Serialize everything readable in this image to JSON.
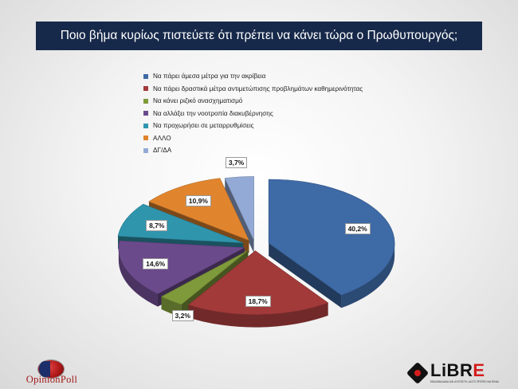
{
  "title": "Ποιο βήμα κυρίως πιστεύετε ότι πρέπει να κάνει τώρα ο Πρωθυπουργός;",
  "chart_data": {
    "type": "pie",
    "title": "Ποιο βήμα κυρίως πιστεύετε ότι πρέπει να κάνει τώρα ο Πρωθυπουργός;",
    "variant": "3d-exploded",
    "legend_position": "top",
    "labels": [
      "Να πάρει άμεσα μέτρα για την ακρίβεια",
      "Να πάρει δραστικά μέτρα αντιμετώπισης προβλημάτων καθημερινότητας",
      "Να κάνει ριζικό ανασχηματισμό",
      "Να αλλάξει την νοοτροπία διακυβέρνησης",
      "Να προχωρήσει σε μεταρρυθμίσεις",
      "ΑΛΛΟ",
      "ΔΓ/ΔΑ"
    ],
    "values": [
      40.2,
      18.7,
      3.2,
      14.6,
      8.7,
      10.9,
      3.7
    ],
    "value_labels": [
      "40,2%",
      "18,7%",
      "3,2%",
      "14,6%",
      "8,7%",
      "10,9%",
      "3,7%"
    ],
    "colors": [
      "#3e6aa6",
      "#a33a3a",
      "#7f9a3a",
      "#6b4a8c",
      "#2f95ad",
      "#e0852e",
      "#93aad6"
    ]
  },
  "logos": {
    "left": "OpinionPoll",
    "right": "LiBRE",
    "right_tagline": "ΕΒΔΟΜΑΔΙΑΙΑ ΚΑΙ ΔΥΣΠΙΣΤΗ, ΔΙΟΤΙ ΠΡΕΠΕΙ ΝΑ ΕΙΝΑΙ"
  }
}
